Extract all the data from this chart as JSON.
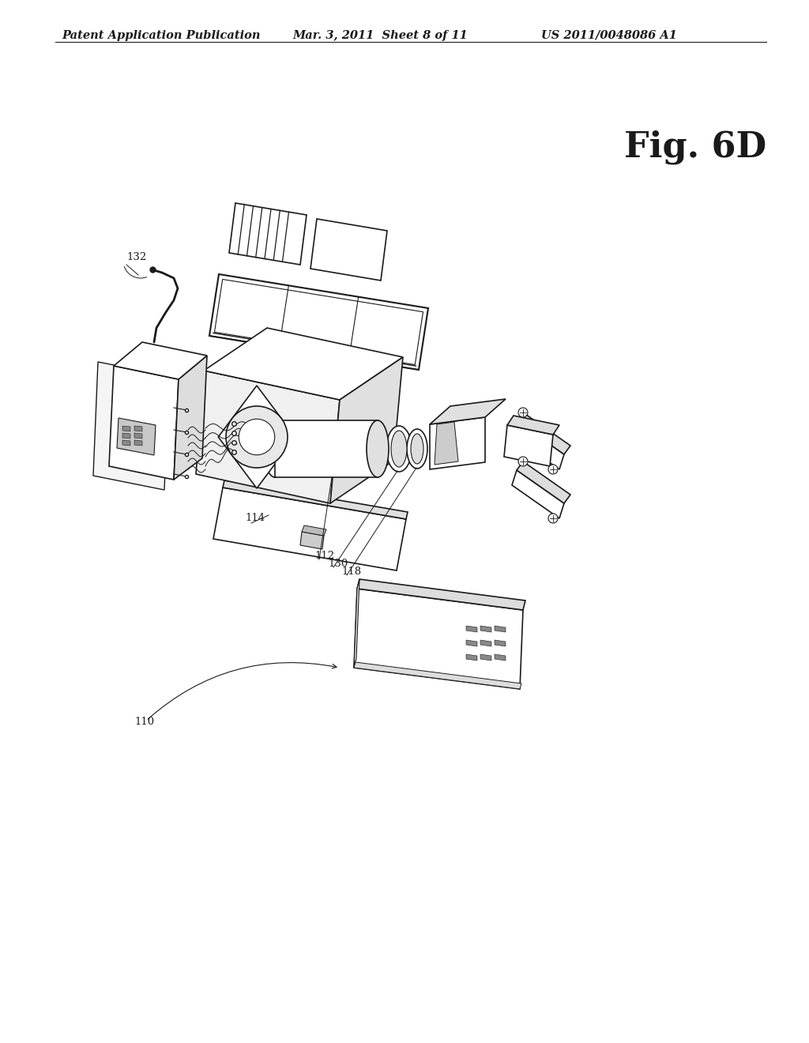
{
  "header_left": "Patent Application Publication",
  "header_mid": "Mar. 3, 2011  Sheet 8 of 11",
  "header_right": "US 2011/0048086 A1",
  "fig_label": "Fig. 6D",
  "bg_color": "#ffffff",
  "lc": "#1a1a1a",
  "diagram_scale": 1.0
}
